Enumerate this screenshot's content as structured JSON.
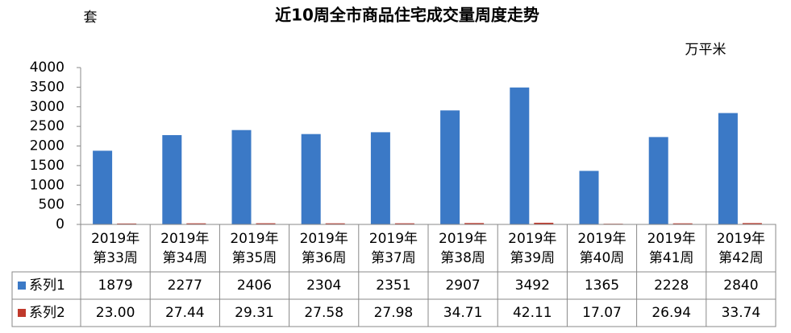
{
  "chart_data": {
    "type": "bar",
    "title": "近10周全市商品住宅成交量周度走势",
    "left_unit": "套",
    "right_unit": "万平米",
    "categories": [
      [
        "2019年",
        "第33周"
      ],
      [
        "2019年",
        "第34周"
      ],
      [
        "2019年",
        "第35周"
      ],
      [
        "2019年",
        "第36周"
      ],
      [
        "2019年",
        "第37周"
      ],
      [
        "2019年",
        "第38周"
      ],
      [
        "2019年",
        "第39周"
      ],
      [
        "2019年",
        "第40周"
      ],
      [
        "2019年",
        "第41周"
      ],
      [
        "2019年",
        "第42周"
      ]
    ],
    "series": [
      {
        "name": "系列1",
        "color": "#3b79c6",
        "values": [
          1879,
          2277,
          2406,
          2304,
          2351,
          2907,
          3492,
          1365,
          2228,
          2840
        ]
      },
      {
        "name": "系列2",
        "color": "#c0392b",
        "values": [
          23,
          27.44,
          29.31,
          27.58,
          27.98,
          34.71,
          42.11,
          17.07,
          26.94,
          33.74
        ],
        "value_labels": [
          "23.00",
          "27.44",
          "29.31",
          "27.58",
          "27.98",
          "34.71",
          "42.11",
          "17.07",
          "26.94",
          "33.74"
        ]
      }
    ],
    "ylim": [
      0,
      4000
    ],
    "yticks": [
      0,
      500,
      1000,
      1500,
      2000,
      2500,
      3000,
      3500,
      4000
    ]
  }
}
